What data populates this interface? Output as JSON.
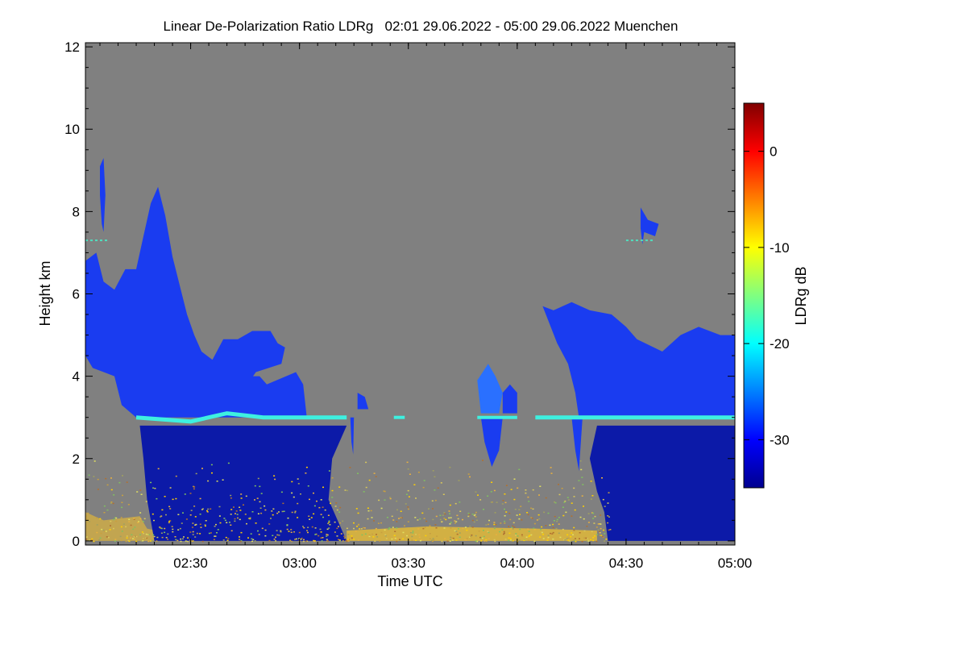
{
  "chart_data": {
    "type": "heatmap",
    "title": "Linear De-Polarization Ratio LDRg   02:01 29.06.2022 - 05:00 29.06.2022 Muenchen",
    "xlabel": "Time UTC",
    "ylabel": "Height km",
    "x_range_minutes": [
      121,
      300
    ],
    "x_tick_labels": [
      {
        "label": "02:30",
        "minute": 150
      },
      {
        "label": "03:00",
        "minute": 180
      },
      {
        "label": "03:30",
        "minute": 210
      },
      {
        "label": "04:00",
        "minute": 240
      },
      {
        "label": "04:30",
        "minute": 270
      },
      {
        "label": "05:00",
        "minute": 300
      }
    ],
    "y_range_km": [
      -0.1,
      12.1
    ],
    "y_ticks": [
      0,
      2,
      4,
      6,
      8,
      10,
      12
    ],
    "colorbar": {
      "label": "LDRg dB",
      "range": [
        -35,
        5
      ],
      "ticks": [
        0,
        -10,
        -20,
        -30
      ],
      "colors": [
        "#00008f",
        "#0000ff",
        "#0080ff",
        "#00ffff",
        "#80ff80",
        "#ffff00",
        "#ff8000",
        "#ff0000",
        "#800000"
      ]
    },
    "colors": {
      "no_data": "#808080",
      "cloud": "#1a3cf0",
      "cloud_dense": "#0c1aa8",
      "layer": "#3ef0e0",
      "aerosol": "#d9c85a"
    },
    "features": [
      {
        "name": "cirrus-cloud-left",
        "ldr_db": -28,
        "x_minutes": [
          121,
          180
        ],
        "height_km": [
          2.9,
          9.0
        ]
      },
      {
        "name": "cirrus-cloud-right",
        "ldr_db": -28,
        "x_minutes": [
          245,
          300
        ],
        "height_km": [
          2.9,
          5.5
        ]
      },
      {
        "name": "melting-layer",
        "ldr_db": -20,
        "x_minutes": [
          135,
          300
        ],
        "height_km": [
          2.8,
          3.1
        ]
      },
      {
        "name": "rain-column-left",
        "ldr_db": -32,
        "x_minutes": [
          136,
          193
        ],
        "height_km": [
          0.0,
          2.8
        ]
      },
      {
        "name": "rain-column-right",
        "ldr_db": -32,
        "x_minutes": [
          262,
          300
        ],
        "height_km": [
          0.0,
          2.8
        ]
      },
      {
        "name": "boundary-layer-aerosol",
        "ldr_db": -10,
        "x_minutes": [
          121,
          262
        ],
        "height_km": [
          0.0,
          2.0
        ]
      },
      {
        "name": "small-cirrus-patch",
        "ldr_db": -28,
        "x_minutes": [
          274,
          279
        ],
        "height_km": [
          7.4,
          8.2
        ]
      }
    ]
  }
}
